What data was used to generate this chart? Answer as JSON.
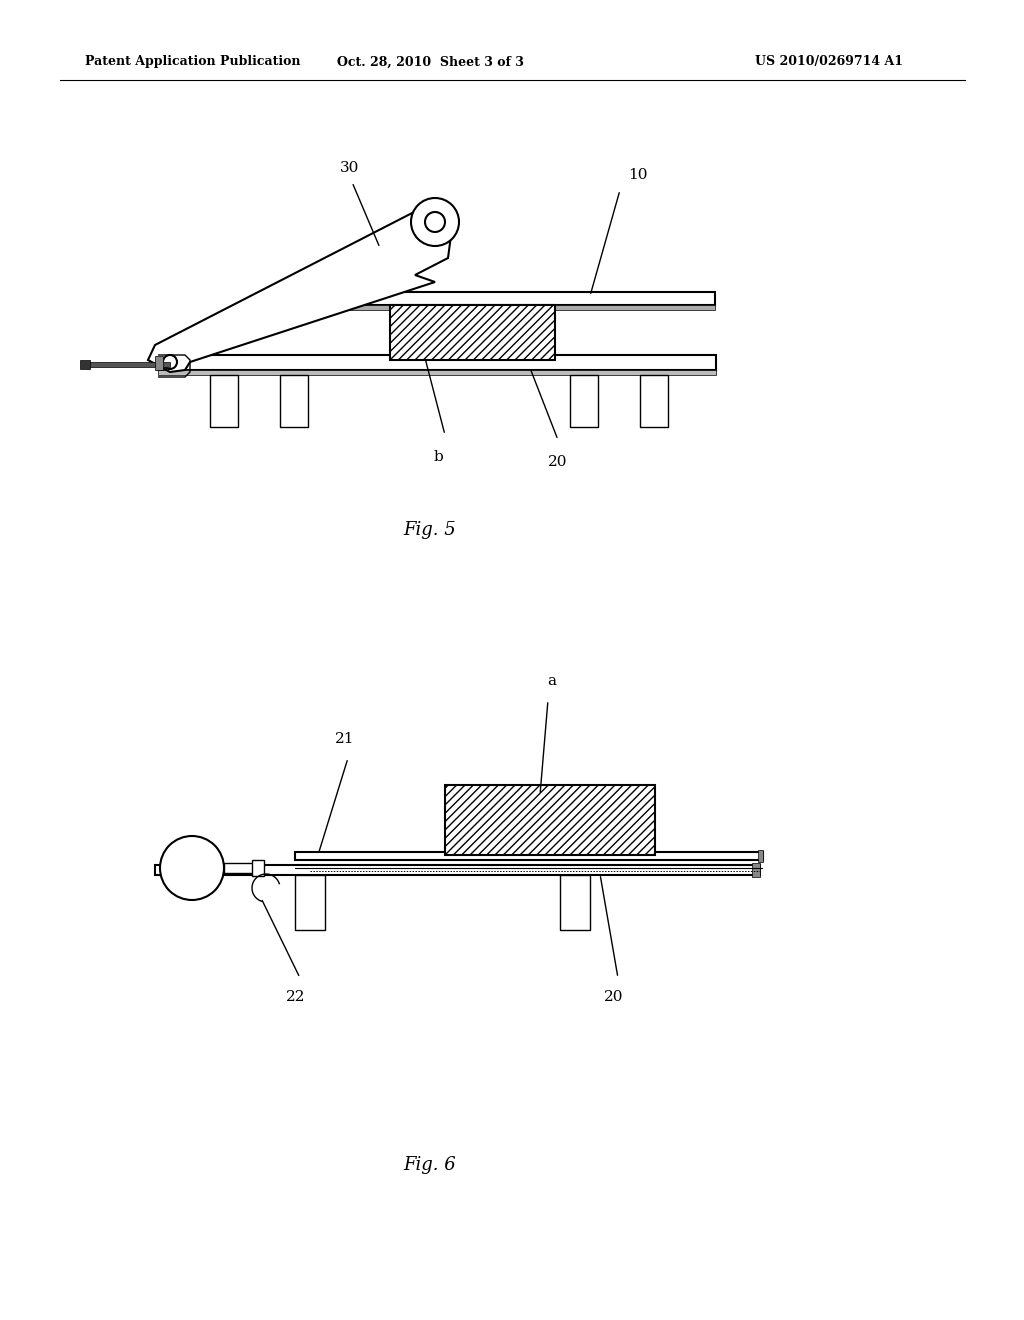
{
  "bg_color": "#ffffff",
  "line_color": "#000000",
  "header_left": "Patent Application Publication",
  "header_mid": "Oct. 28, 2010  Sheet 3 of 3",
  "header_right": "US 2010/0269714 A1",
  "fig5_label": "Fig. 5",
  "fig6_label": "Fig. 6",
  "label_10": "10",
  "label_30": "30",
  "label_20_fig5": "20",
  "label_b": "b",
  "label_a": "a",
  "label_21": "21",
  "label_22": "22",
  "label_20_fig6": "20"
}
